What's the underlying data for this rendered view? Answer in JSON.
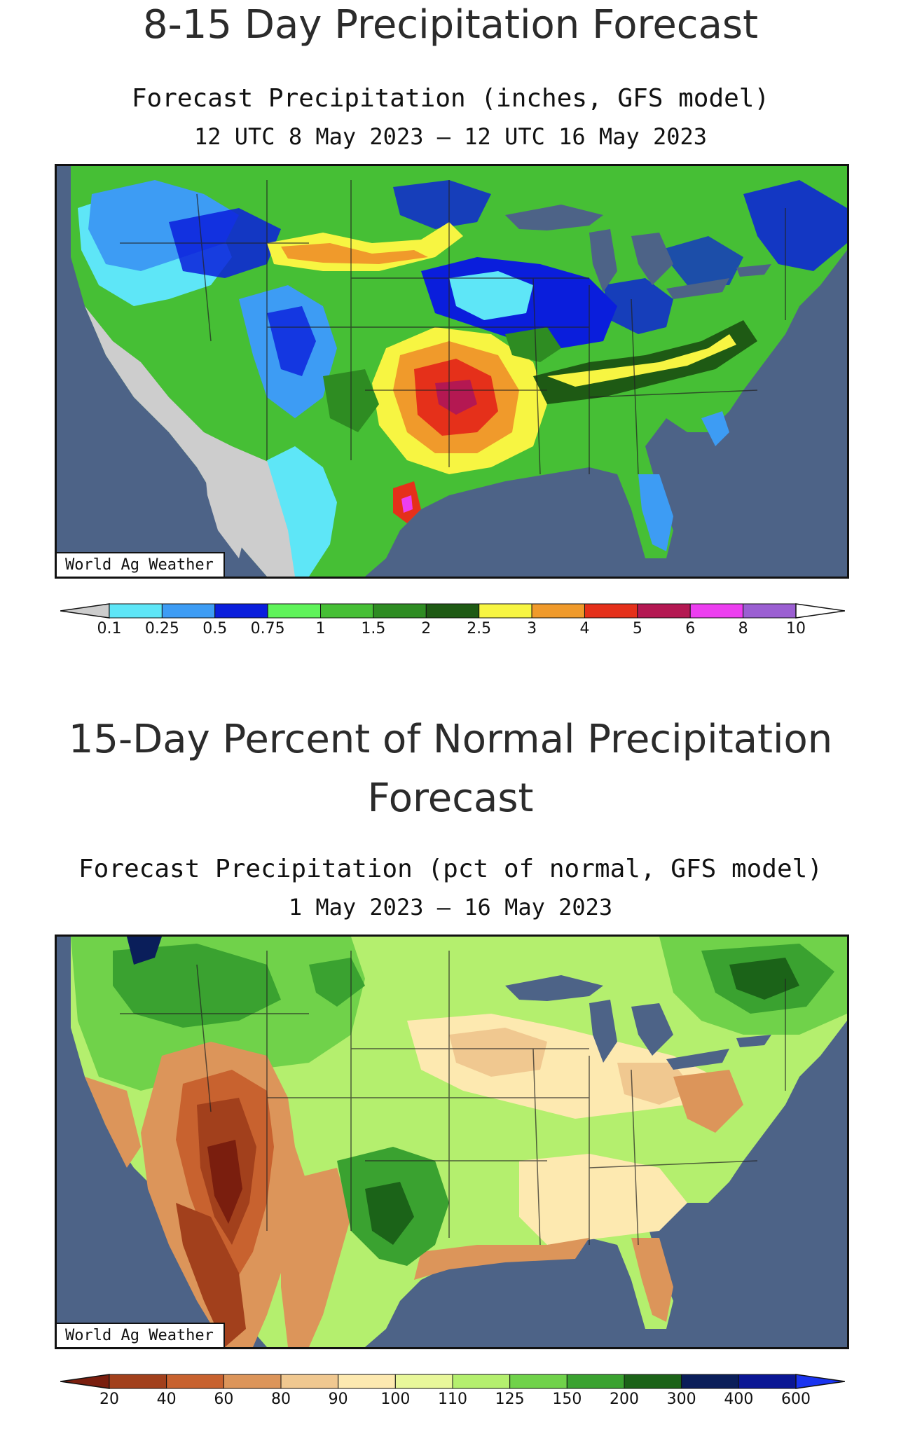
{
  "map1": {
    "title": "8-15 Day Precipitation Forecast",
    "subtitle_line1": "Forecast Precipitation (inches, GFS model)",
    "subtitle_line2": "12 UTC 8 May 2023 – 12 UTC 16 May 2023",
    "watermark": "World Ag Weather",
    "legend": {
      "tick_labels": [
        "0.1",
        "0.25",
        "0.5",
        "0.75",
        "1",
        "1.5",
        "2",
        "2.5",
        "3",
        "4",
        "5",
        "6",
        "8",
        "10"
      ],
      "colors": [
        "#cdcdcd",
        "#5ee6f7",
        "#3d9cf4",
        "#0a1edc",
        "#5ff35a",
        "#46bf35",
        "#2e8c22",
        "#1e5a14",
        "#f7f542",
        "#f09a2b",
        "#e5301a",
        "#b41852",
        "#ec3ef0",
        "#9b5fd2",
        "#ffffff"
      ]
    }
  },
  "map2": {
    "title": "15-Day Percent of Normal Precipitation Forecast",
    "subtitle_line1": "Forecast Precipitation (pct of normal, GFS model)",
    "subtitle_line2": "1 May 2023 – 16 May 2023",
    "watermark": "World Ag Weather",
    "legend": {
      "tick_labels": [
        "20",
        "40",
        "60",
        "80",
        "90",
        "100",
        "110",
        "125",
        "150",
        "200",
        "300",
        "400",
        "600"
      ],
      "colors": [
        "#7a1e0e",
        "#a2401c",
        "#c8622f",
        "#dc955a",
        "#f0c890",
        "#fde9b0",
        "#e8f79a",
        "#b4ef6e",
        "#70d24a",
        "#3aa230",
        "#1b6318",
        "#0a1e5a",
        "#0a1694",
        "#1a34f0"
      ]
    }
  }
}
